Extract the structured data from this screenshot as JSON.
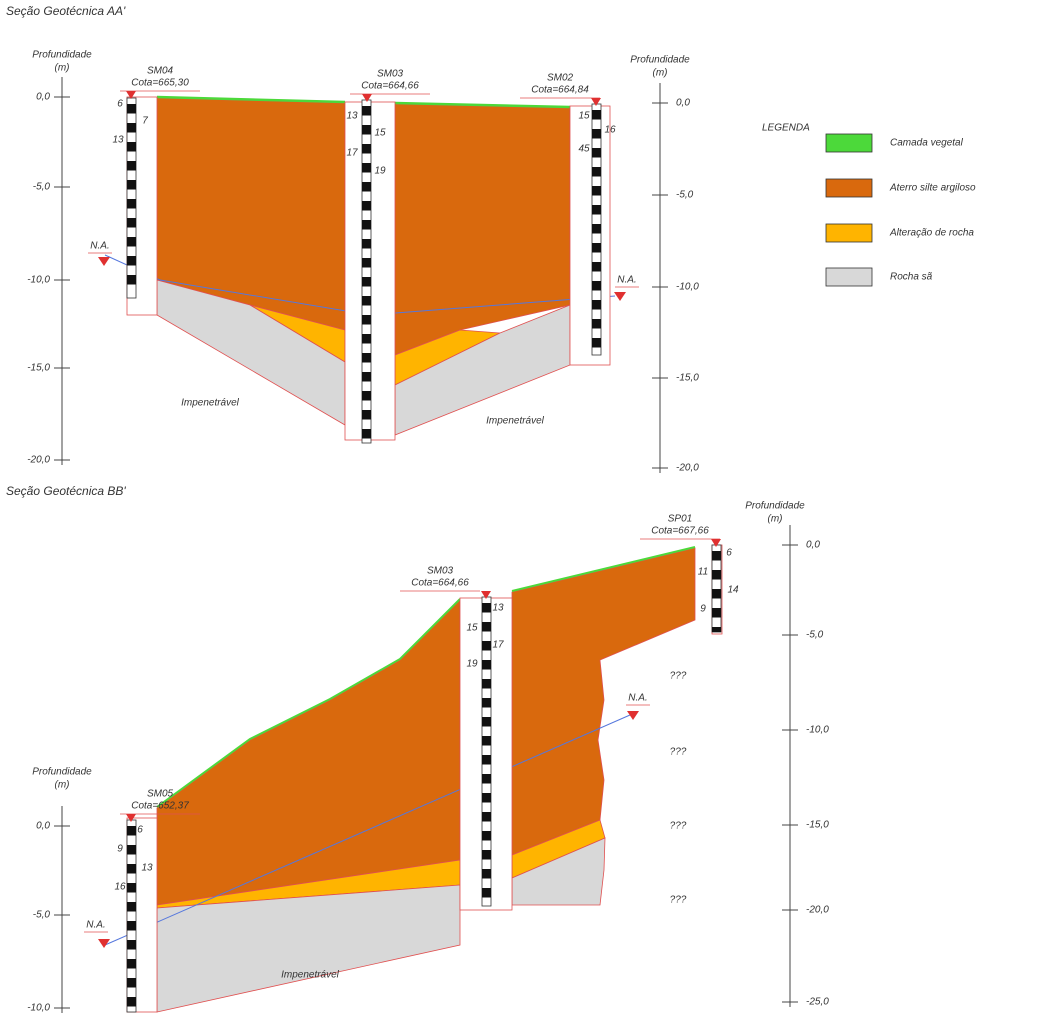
{
  "section_aa": {
    "title": "Seção Geotécnica AA'",
    "depth_label_left": [
      "Profundidade",
      "(m)"
    ],
    "depth_label_right": [
      "Profundidade",
      "(m)"
    ],
    "axis_left": [
      "0,0",
      "-5,0",
      "-10,0",
      "-15,0",
      "-20,0"
    ],
    "axis_right": [
      "0,0",
      "-5,0",
      "-10,0",
      "-15,0",
      "-20,0"
    ],
    "boreholes": [
      {
        "name": "SM04",
        "elevation": "Cota=665,30",
        "spt": [
          "6",
          "7",
          "13"
        ]
      },
      {
        "name": "SM03",
        "elevation": "Cota=664,66",
        "spt": [
          "13",
          "15",
          "17",
          "19"
        ]
      },
      {
        "name": "SM02",
        "elevation": "Cota=664,84",
        "spt": [
          "15",
          "16",
          "45"
        ]
      }
    ],
    "water_level": [
      "N.A.",
      "N.A."
    ],
    "notes": [
      "Impenetrável",
      "Impenetrável"
    ]
  },
  "legend": {
    "title": "LEGENDA",
    "items": [
      {
        "label": "Camada vegetal",
        "color": "#4cd93a"
      },
      {
        "label": "Aterro silte argiloso",
        "color": "#d9690d"
      },
      {
        "label": "Alteração de rocha",
        "color": "#ffb400"
      },
      {
        "label": "Rocha sã",
        "color": "#d8d8d8"
      }
    ]
  },
  "section_bb": {
    "title": "Seção Geotécnica BB'",
    "depth_label_left": [
      "Profundidade",
      "(m)"
    ],
    "depth_label_right": [
      "Profundidade",
      "(m)"
    ],
    "axis_left": [
      "0,0",
      "-5,0",
      "-10,0"
    ],
    "axis_right": [
      "0,0",
      "-5,0",
      "-10,0",
      "-15,0",
      "-20,0",
      "-25,0"
    ],
    "boreholes": [
      {
        "name": "SM05",
        "elevation": "Cota=652,37",
        "spt": [
          "6",
          "9",
          "13",
          "16"
        ]
      },
      {
        "name": "SM03",
        "elevation": "Cota=664,66",
        "spt": [
          "13",
          "15",
          "17",
          "19"
        ]
      },
      {
        "name": "SP01",
        "elevation": "Cota=667,66",
        "spt": [
          "6",
          "11",
          "14",
          "9"
        ]
      }
    ],
    "water_level": [
      "N.A.",
      "N.A."
    ],
    "unknown": [
      "???",
      "???",
      "???",
      "???"
    ],
    "notes": [
      "Impenetrável"
    ]
  }
}
